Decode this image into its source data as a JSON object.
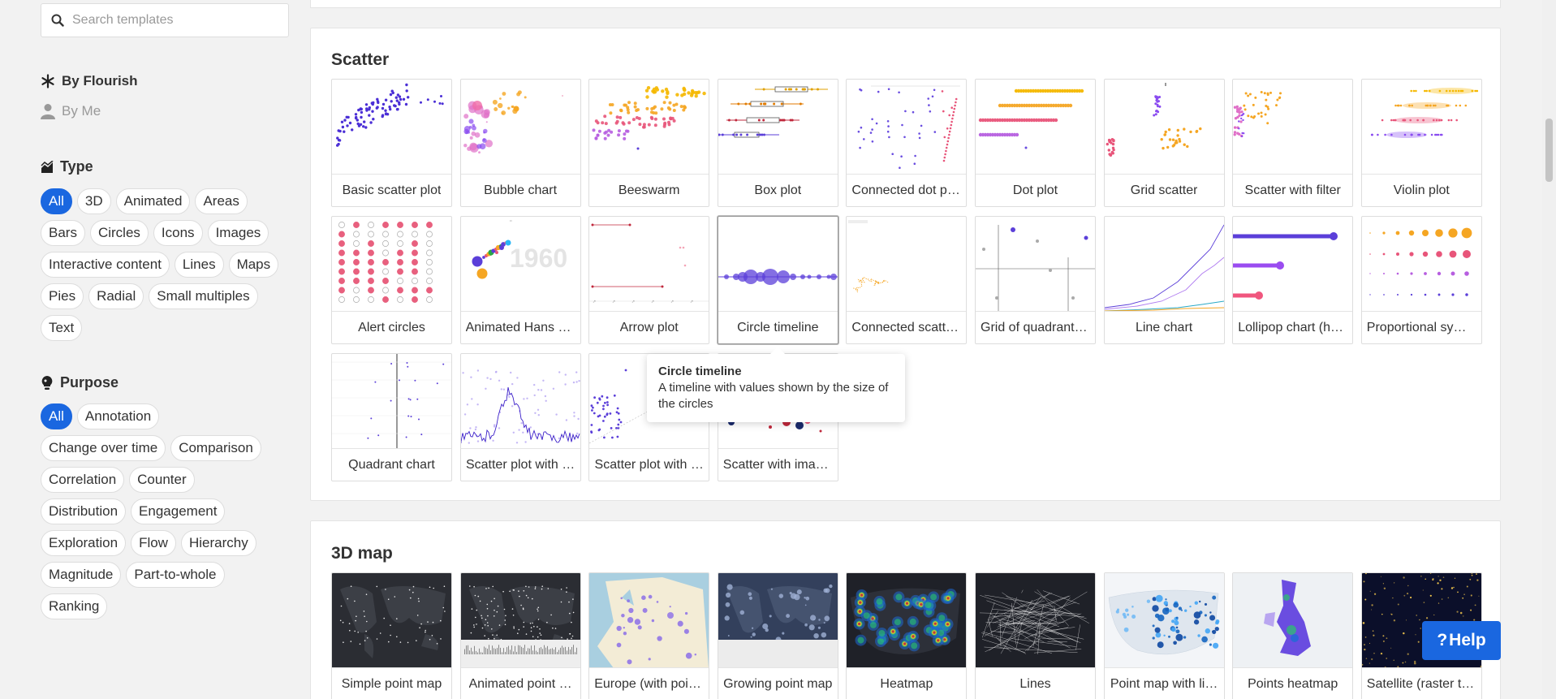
{
  "search": {
    "placeholder": "Search templates"
  },
  "owners": [
    {
      "label": "By Flourish",
      "icon": "asterisk-icon",
      "active": true
    },
    {
      "label": "By Me",
      "icon": "user-icon",
      "active": false
    }
  ],
  "type_filter": {
    "title": "Type",
    "icon": "chart-type-icon",
    "chips": [
      "All",
      "3D",
      "Animated",
      "Areas",
      "Bars",
      "Circles",
      "Icons",
      "Images",
      "Interactive content",
      "Lines",
      "Maps",
      "Pies",
      "Radial",
      "Small multiples",
      "Text"
    ],
    "active": "All"
  },
  "purpose_filter": {
    "title": "Purpose",
    "icon": "lightbulb-icon",
    "chips": [
      "All",
      "Annotation",
      "Change over time",
      "Comparison",
      "Correlation",
      "Counter",
      "Distribution",
      "Engagement",
      "Exploration",
      "Flow",
      "Hierarchy",
      "Magnitude",
      "Part-to-whole",
      "Ranking"
    ],
    "active": "All"
  },
  "scatter_section": {
    "title": "Scatter",
    "tiles": [
      {
        "label": "Basic scatter plot",
        "thumb": "scatter-basic"
      },
      {
        "label": "Bubble chart",
        "thumb": "bubble"
      },
      {
        "label": "Beeswarm",
        "thumb": "beeswarm"
      },
      {
        "label": "Box plot",
        "thumb": "boxplot"
      },
      {
        "label": "Connected dot pl…",
        "thumb": "connected-dot"
      },
      {
        "label": "Dot plot",
        "thumb": "dotplot"
      },
      {
        "label": "Grid scatter",
        "thumb": "grid-scatter"
      },
      {
        "label": "Scatter with filter",
        "thumb": "scatter-filter"
      },
      {
        "label": "Violin plot",
        "thumb": "violin"
      },
      {
        "label": "Alert circles",
        "thumb": "alert-circles"
      },
      {
        "label": "Animated Hans R…",
        "thumb": "hans"
      },
      {
        "label": "Arrow plot",
        "thumb": "arrow"
      },
      {
        "label": "Circle timeline",
        "thumb": "circle-timeline"
      },
      {
        "label": "Connected scatte…",
        "thumb": "connected-scatter"
      },
      {
        "label": "Grid of quadrant …",
        "thumb": "quadrant-grid"
      },
      {
        "label": "Line chart",
        "thumb": "line"
      },
      {
        "label": "Lollipop chart (ho…",
        "thumb": "lollipop"
      },
      {
        "label": "Proportional sym…",
        "thumb": "proportional"
      },
      {
        "label": "Quadrant chart",
        "thumb": "quadrant"
      },
      {
        "label": "Scatter plot with …",
        "thumb": "scatter-line"
      },
      {
        "label": "Scatter plot with …",
        "thumb": "scatter-trend"
      },
      {
        "label": "Scatter with imag…",
        "thumb": "scatter-images"
      }
    ]
  },
  "tooltip": {
    "title": "Circle timeline",
    "description": "A timeline with values shown by the size of the circles"
  },
  "map_section": {
    "title": "3D map",
    "tiles": [
      {
        "label": "Simple point map",
        "thumb": "map-dark"
      },
      {
        "label": "Animated point …",
        "thumb": "map-dark-animated"
      },
      {
        "label": "Europe (with poin…",
        "thumb": "map-europe"
      },
      {
        "label": "Growing point map",
        "thumb": "map-navy"
      },
      {
        "label": "Heatmap",
        "thumb": "map-heat"
      },
      {
        "label": "Lines",
        "thumb": "map-lines"
      },
      {
        "label": "Point map with li…",
        "thumb": "map-usa"
      },
      {
        "label": "Points heatmap",
        "thumb": "map-uk"
      },
      {
        "label": "Satellite (raster ti…",
        "thumb": "map-satellite"
      }
    ]
  },
  "help": {
    "label": "Help",
    "icon": "question-icon"
  },
  "colors": {
    "accent": "#1a67e0",
    "purple": "#5b3fd9",
    "orange": "#f5a623",
    "pink": "#e8557a"
  }
}
